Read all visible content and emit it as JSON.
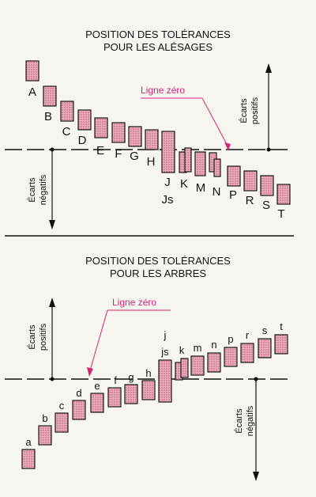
{
  "colors": {
    "box_fill": "#e9a9b8",
    "box_stroke": "#1a1a1a",
    "zero_label": "#d0266f",
    "ink": "#111111"
  },
  "top": {
    "title_line1": "POSITION DES TOLÉRANCES",
    "title_line2": "POUR LES ALÉSAGES",
    "zero_line_label": "Ligne zéro",
    "positive_label_line1": "Écarts",
    "positive_label_line2": "positifs",
    "negative_label_line1": "Écarts",
    "negative_label_line2": "négatifs",
    "letters": [
      "A",
      "B",
      "C",
      "D",
      "E",
      "F",
      "G",
      "H",
      "J",
      "Js",
      "K",
      "M",
      "N",
      "P",
      "R",
      "S",
      "T"
    ]
  },
  "bottom": {
    "title_line1": "POSITION DES TOLÉRANCES",
    "title_line2": "POUR LES ARBRES",
    "zero_line_label": "Ligne zéro",
    "positive_label_line1": "Écarts",
    "positive_label_line2": "positifs",
    "negative_label_line1": "Écarts",
    "negative_label_line2": "négatifs",
    "letters": [
      "a",
      "b",
      "c",
      "d",
      "e",
      "f",
      "g",
      "h",
      "j",
      "js",
      "k",
      "m",
      "n",
      "p",
      "r",
      "s",
      "t"
    ]
  }
}
